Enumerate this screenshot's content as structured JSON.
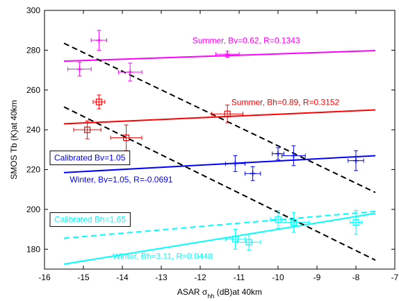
{
  "chart_data": {
    "type": "scatter",
    "xlabel_main": "ASAR σ",
    "xlabel_sub": "hh",
    "xlabel_tail": " (dB)at 40km",
    "ylabel": "SMOS Tb (K)at 40km",
    "xlim": [
      -16,
      -7
    ],
    "ylim": [
      170,
      300
    ],
    "xticks": [
      -16,
      -15,
      -14,
      -13,
      -12,
      -11,
      -10,
      -9,
      -8,
      -7
    ],
    "yticks": [
      180,
      200,
      220,
      240,
      260,
      280,
      300
    ],
    "grid": false,
    "colors": {
      "summer_bv": "#ff00ff",
      "summer_bh": "#ff0000",
      "winter_bv": "#0000ff",
      "winter_bh": "#00ffff",
      "reference": "#000000"
    },
    "points": [
      {
        "series": "summer_bv",
        "marker": "plus",
        "x": -15.1,
        "y": 270.5,
        "xerr": 0.3,
        "yerr": 3.5
      },
      {
        "series": "summer_bv",
        "marker": "plus",
        "x": -14.6,
        "y": 285,
        "xerr": 0.2,
        "yerr": 5
      },
      {
        "series": "summer_bv",
        "marker": "plus",
        "x": -13.8,
        "y": 269,
        "xerr": 0.3,
        "yerr": 4.5
      },
      {
        "series": "summer_bv",
        "marker": "plus",
        "x": -11.3,
        "y": 278,
        "xerr": 0.3,
        "yerr": 1.5
      },
      {
        "series": "summer_bh",
        "marker": "square",
        "x": -14.6,
        "y": 254,
        "xerr": 0.15,
        "yerr": 3.5
      },
      {
        "series": "summer_bh",
        "marker": "square",
        "x": -14.9,
        "y": 240,
        "xerr": 0.35,
        "yerr": 4.5
      },
      {
        "series": "summer_bh",
        "marker": "square",
        "x": -13.9,
        "y": 236,
        "xerr": 0.4,
        "yerr": 6.5
      },
      {
        "series": "summer_bh",
        "marker": "square",
        "x": -11.3,
        "y": 248,
        "xerr": 0.4,
        "yerr": 4.5
      },
      {
        "series": "winter_bv",
        "marker": "plus",
        "x": -11.1,
        "y": 223,
        "xerr": 0.25,
        "yerr": 4
      },
      {
        "series": "winter_bv",
        "marker": "plus",
        "x": -10.65,
        "y": 218,
        "xerr": 0.2,
        "yerr": 3.5
      },
      {
        "series": "winter_bv",
        "marker": "plus",
        "x": -10.0,
        "y": 228,
        "xerr": 0.15,
        "yerr": 3
      },
      {
        "series": "winter_bv",
        "marker": "plus",
        "x": -9.6,
        "y": 227,
        "xerr": 0.3,
        "yerr": 5
      },
      {
        "series": "winter_bv",
        "marker": "plus",
        "x": -8.0,
        "y": 224.5,
        "xerr": 0.2,
        "yerr": 5
      },
      {
        "series": "winter_bh",
        "marker": "square",
        "x": -11.1,
        "y": 185,
        "xerr": 0.25,
        "yerr": 5
      },
      {
        "series": "winter_bh",
        "marker": "square",
        "x": -10.75,
        "y": 183.5,
        "xerr": 0.3,
        "yerr": 4
      },
      {
        "series": "winter_bh",
        "marker": "square",
        "x": -10.0,
        "y": 195,
        "xerr": 0.2,
        "yerr": 4.5
      },
      {
        "series": "winter_bh",
        "marker": "square",
        "x": -9.6,
        "y": 193.5,
        "xerr": 0.4,
        "yerr": 5
      },
      {
        "series": "winter_bh",
        "marker": "square",
        "x": -8.0,
        "y": 193.5,
        "xerr": 0.15,
        "yerr": 6
      }
    ],
    "lines": [
      {
        "series": "summer_bv",
        "style": "solid",
        "x": [
          -15.5,
          -7.5
        ],
        "y": [
          274.5,
          279.8
        ]
      },
      {
        "series": "summer_bh",
        "style": "solid",
        "x": [
          -15.5,
          -7.5
        ],
        "y": [
          243,
          250
        ]
      },
      {
        "series": "winter_bv",
        "style": "solid",
        "x": [
          -15.5,
          -7.5
        ],
        "y": [
          218.5,
          227
        ]
      },
      {
        "series": "winter_bh",
        "style": "solid",
        "x": [
          -15.5,
          -7.5
        ],
        "y": [
          172.5,
          198
        ]
      },
      {
        "series": "winter_bh",
        "style": "dashed",
        "x": [
          -15.5,
          -7.5
        ],
        "y": [
          185.5,
          199
        ]
      },
      {
        "series": "reference",
        "style": "dashed",
        "x": [
          -15.5,
          -7.5
        ],
        "y": [
          283.5,
          208.5
        ]
      },
      {
        "series": "reference",
        "style": "dashed",
        "x": [
          -15.5,
          -7.5
        ],
        "y": [
          251.5,
          174.5
        ]
      }
    ],
    "annotations": [
      {
        "text": "Summer, Bv=0.62, R=0.1343",
        "series": "summer_bv",
        "x": -12.2,
        "y": 283.5,
        "box": false
      },
      {
        "text": "Summer, Bh=0.89, R=0.3152",
        "series": "summer_bh",
        "x": -11.2,
        "y": 252.5,
        "box": false
      },
      {
        "text": "Calibrated Bv=1.05",
        "series": "winter_bv",
        "x": -15.75,
        "y": 224.5,
        "box": true
      },
      {
        "text": "Winter, Bv=1.05, R=-0.0691",
        "series": "winter_bv",
        "x": -15.35,
        "y": 213.5,
        "box": false
      },
      {
        "text": "Calibrated Bh=1.65",
        "series": "winter_bh",
        "x": -15.75,
        "y": 193.5,
        "box": true
      },
      {
        "text": "Winter, Bh=3.11, R=0.0448",
        "series": "winter_bh",
        "x": -14.25,
        "y": 175,
        "box": false
      }
    ]
  }
}
